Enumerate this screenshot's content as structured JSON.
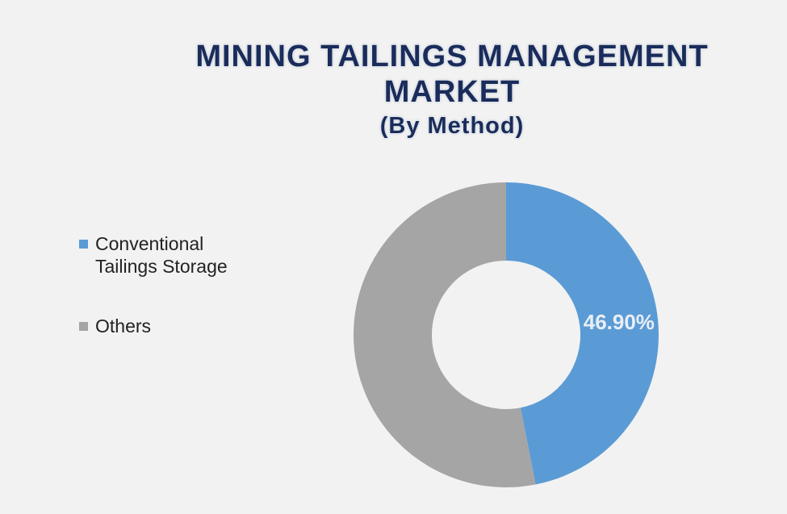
{
  "chart_data": {
    "type": "donut",
    "title": "MINING TAILINGS MANAGEMENT MARKET",
    "subtitle": "(By Method)",
    "categories": [
      "Conventional Tailings Storage",
      "Others"
    ],
    "values": [
      46.9,
      53.1
    ],
    "value_labels": [
      "46.90%",
      null
    ],
    "colors": [
      "#5b9bd5",
      "#a5a5a5"
    ],
    "legend": "left"
  }
}
